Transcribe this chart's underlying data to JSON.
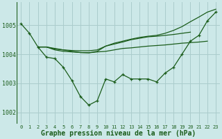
{
  "background_color": "#cce8e8",
  "grid_color": "#aacccc",
  "line_color": "#1a5c1a",
  "xlabel": "Graphe pression niveau de la mer (hPa)",
  "xlabel_fontsize": 7,
  "ylabel_ticks": [
    1002,
    1003,
    1004,
    1005
  ],
  "xlim": [
    -0.5,
    23.5
  ],
  "ylim": [
    1001.6,
    1005.8
  ],
  "xticks": [
    0,
    1,
    2,
    3,
    4,
    5,
    6,
    7,
    8,
    9,
    10,
    11,
    12,
    13,
    14,
    15,
    16,
    17,
    18,
    19,
    20,
    21,
    22,
    23
  ],
  "series": [
    {
      "x": [
        0,
        1,
        2,
        3,
        4,
        5,
        6,
        7,
        8,
        9,
        10,
        11,
        12,
        13,
        14,
        15,
        16,
        17,
        18,
        19,
        20,
        21,
        22,
        23
      ],
      "y": [
        1005.05,
        1004.72,
        1004.25,
        1003.9,
        1003.85,
        1003.55,
        1003.1,
        1002.55,
        1002.25,
        1002.4,
        1003.15,
        1003.05,
        1003.3,
        1003.15,
        1003.15,
        1003.15,
        1003.05,
        1003.35,
        1003.55,
        1004.0,
        1004.45,
        1004.65,
        1005.15,
        1005.45
      ],
      "marker": true
    },
    {
      "x": [
        2,
        3,
        4,
        5,
        6,
        7,
        8,
        9,
        10,
        11,
        12,
        13,
        14,
        15,
        16,
        17,
        18,
        19,
        20,
        21,
        22
      ],
      "y": [
        1004.25,
        1004.25,
        1004.15,
        1004.1,
        1004.08,
        1004.06,
        1004.05,
        1004.08,
        1004.1,
        1004.15,
        1004.2,
        1004.22,
        1004.25,
        1004.28,
        1004.3,
        1004.32,
        1004.35,
        1004.38,
        1004.4,
        1004.42,
        1004.45
      ],
      "marker": false
    },
    {
      "x": [
        2,
        3,
        4,
        5,
        6,
        7,
        8,
        9,
        10,
        11,
        12,
        13,
        14,
        15,
        16,
        17,
        18,
        19,
        20
      ],
      "y": [
        1004.25,
        1004.25,
        1004.18,
        1004.15,
        1004.13,
        1004.12,
        1004.12,
        1004.15,
        1004.28,
        1004.35,
        1004.42,
        1004.5,
        1004.55,
        1004.6,
        1004.62,
        1004.65,
        1004.68,
        1004.72,
        1004.76
      ],
      "marker": false
    },
    {
      "x": [
        2,
        3,
        4,
        5,
        6,
        7,
        8,
        9,
        10,
        11,
        12,
        13,
        14,
        15,
        16,
        17,
        18,
        19,
        20,
        21,
        22,
        23
      ],
      "y": [
        1004.25,
        1004.25,
        1004.2,
        1004.15,
        1004.1,
        1004.06,
        1004.05,
        1004.1,
        1004.28,
        1004.38,
        1004.45,
        1004.52,
        1004.58,
        1004.62,
        1004.65,
        1004.72,
        1004.82,
        1004.95,
        1005.12,
        1005.28,
        1005.45,
        1005.55
      ],
      "marker": false
    }
  ]
}
